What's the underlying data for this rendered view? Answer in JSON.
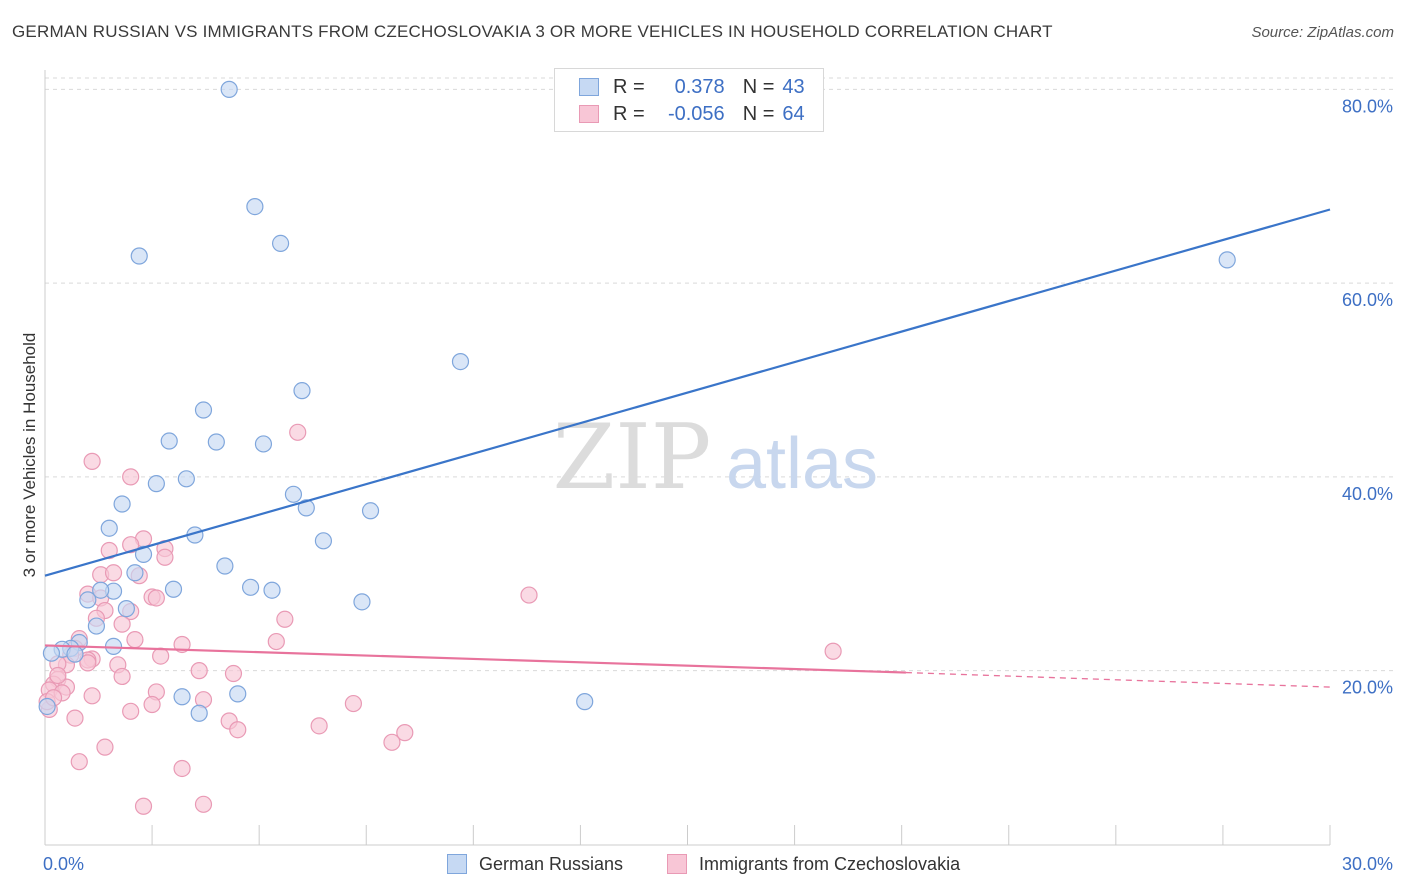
{
  "title": "GERMAN RUSSIAN VS IMMIGRANTS FROM CZECHOSLOVAKIA 3 OR MORE VEHICLES IN HOUSEHOLD CORRELATION CHART",
  "source": "Source: ZipAtlas.com",
  "watermark": {
    "zip": "ZIP",
    "atlas": "atlas"
  },
  "legend_top": [
    {
      "r_label": "R =",
      "r_value": "0.378",
      "n_label": "N =",
      "n_value": "43"
    },
    {
      "r_label": "R =",
      "r_value": "-0.056",
      "n_label": "N =",
      "n_value": "64"
    }
  ],
  "legend_bottom": [
    "German Russians",
    "Immigrants from Czechoslovakia"
  ],
  "colors": {
    "blue_fill": "#c6d9f3",
    "blue_stroke": "#7fa6dc",
    "blue_line": "#3a75c9",
    "pink_fill": "#f8c6d6",
    "pink_stroke": "#e99ab5",
    "pink_line": "#e8739c",
    "tick_text": "#3d6fc4",
    "grid": "#d9d9d9"
  },
  "chart_data": {
    "type": "scatter",
    "title": "GERMAN RUSSIAN VS IMMIGRANTS FROM CZECHOSLOVAKIA 3 OR MORE VEHICLES IN HOUSEHOLD CORRELATION CHART",
    "xlabel": "",
    "ylabel": "3 or more Vehicles in Household",
    "xlim": [
      0,
      30
    ],
    "ylim": [
      2,
      82
    ],
    "x_tick_labels": [
      "0.0%",
      "30.0%"
    ],
    "y_ticks": [
      20,
      40,
      60,
      80
    ],
    "y_tick_labels": [
      "20.0%",
      "40.0%",
      "60.0%",
      "80.0%"
    ],
    "grid": true,
    "legend_position": "top-center",
    "series": [
      {
        "name": "German Russians",
        "r": 0.378,
        "n": 43,
        "points": [
          [
            4.3,
            80.0
          ],
          [
            4.9,
            67.9
          ],
          [
            5.5,
            64.1
          ],
          [
            2.2,
            62.8
          ],
          [
            27.6,
            62.4
          ],
          [
            9.7,
            51.9
          ],
          [
            6.0,
            48.9
          ],
          [
            3.7,
            46.9
          ],
          [
            2.9,
            43.7
          ],
          [
            4.0,
            43.6
          ],
          [
            5.1,
            43.4
          ],
          [
            3.3,
            39.8
          ],
          [
            2.6,
            39.3
          ],
          [
            5.8,
            38.2
          ],
          [
            6.1,
            36.8
          ],
          [
            7.6,
            36.5
          ],
          [
            1.8,
            37.2
          ],
          [
            1.5,
            34.7
          ],
          [
            3.5,
            34.0
          ],
          [
            6.5,
            33.4
          ],
          [
            2.3,
            32.0
          ],
          [
            4.2,
            30.8
          ],
          [
            2.1,
            30.1
          ],
          [
            4.8,
            28.6
          ],
          [
            5.3,
            28.3
          ],
          [
            3.0,
            28.4
          ],
          [
            1.6,
            28.2
          ],
          [
            1.3,
            28.3
          ],
          [
            1.0,
            27.3
          ],
          [
            7.4,
            27.1
          ],
          [
            1.9,
            26.4
          ],
          [
            1.2,
            24.6
          ],
          [
            1.6,
            22.5
          ],
          [
            0.8,
            22.9
          ],
          [
            0.6,
            22.3
          ],
          [
            0.4,
            22.2
          ],
          [
            0.7,
            21.7
          ],
          [
            0.15,
            21.8
          ],
          [
            3.2,
            17.3
          ],
          [
            4.5,
            17.6
          ],
          [
            3.6,
            15.6
          ],
          [
            12.6,
            16.8
          ],
          [
            0.05,
            16.3
          ]
        ]
      },
      {
        "name": "Immigrants from Czechoslovakia",
        "r": -0.056,
        "n": 64,
        "points": [
          [
            5.9,
            44.6
          ],
          [
            1.1,
            41.6
          ],
          [
            2.0,
            40.0
          ],
          [
            11.3,
            27.8
          ],
          [
            18.4,
            22.0
          ],
          [
            2.3,
            33.6
          ],
          [
            2.0,
            33.0
          ],
          [
            2.8,
            32.6
          ],
          [
            2.8,
            31.7
          ],
          [
            1.5,
            32.4
          ],
          [
            1.3,
            29.9
          ],
          [
            1.6,
            30.1
          ],
          [
            2.2,
            29.8
          ],
          [
            2.5,
            27.6
          ],
          [
            2.6,
            27.5
          ],
          [
            1.0,
            27.9
          ],
          [
            1.3,
            27.5
          ],
          [
            1.4,
            26.2
          ],
          [
            2.0,
            26.1
          ],
          [
            1.2,
            25.4
          ],
          [
            5.6,
            25.3
          ],
          [
            1.8,
            24.8
          ],
          [
            2.1,
            23.2
          ],
          [
            0.8,
            23.3
          ],
          [
            3.2,
            22.7
          ],
          [
            5.4,
            23.0
          ],
          [
            0.7,
            22.3
          ],
          [
            0.6,
            21.6
          ],
          [
            2.7,
            21.5
          ],
          [
            1.1,
            21.2
          ],
          [
            1.0,
            21.1
          ],
          [
            0.5,
            20.6
          ],
          [
            0.3,
            20.7
          ],
          [
            1.7,
            20.6
          ],
          [
            3.6,
            20.0
          ],
          [
            4.4,
            19.7
          ],
          [
            1.8,
            19.4
          ],
          [
            0.3,
            19.1
          ],
          [
            0.2,
            18.6
          ],
          [
            0.5,
            18.3
          ],
          [
            0.1,
            18.0
          ],
          [
            0.4,
            17.7
          ],
          [
            2.6,
            17.8
          ],
          [
            1.1,
            17.4
          ],
          [
            3.7,
            17.0
          ],
          [
            2.5,
            16.5
          ],
          [
            7.2,
            16.6
          ],
          [
            0.1,
            16.0
          ],
          [
            2.0,
            15.8
          ],
          [
            0.7,
            15.1
          ],
          [
            4.3,
            14.8
          ],
          [
            4.5,
            13.9
          ],
          [
            6.4,
            14.3
          ],
          [
            8.4,
            13.6
          ],
          [
            8.1,
            12.6
          ],
          [
            1.4,
            12.1
          ],
          [
            0.8,
            10.6
          ],
          [
            3.2,
            9.9
          ],
          [
            2.3,
            6.0
          ],
          [
            3.7,
            6.2
          ],
          [
            0.05,
            16.8
          ],
          [
            0.2,
            17.2
          ],
          [
            0.3,
            19.5
          ],
          [
            1.0,
            20.8
          ]
        ]
      }
    ],
    "trend_lines": [
      {
        "series": "German Russians",
        "x": [
          0,
          30
        ],
        "y": [
          29.8,
          67.6
        ],
        "style": "solid"
      },
      {
        "series": "Immigrants from Czechoslovakia",
        "x": [
          0,
          20.1
        ],
        "y": [
          22.6,
          19.8
        ],
        "style": "solid"
      },
      {
        "series": "Immigrants from Czechoslovakia",
        "x": [
          20.1,
          30
        ],
        "y": [
          19.8,
          18.3
        ],
        "style": "dashed"
      }
    ]
  }
}
